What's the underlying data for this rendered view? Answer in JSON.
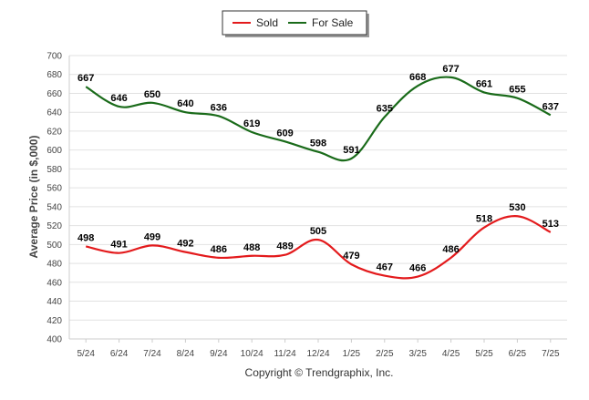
{
  "chart_data": {
    "type": "line",
    "title": "",
    "xlabel": "",
    "ylabel": "Average Price (in $,000)",
    "ylim": [
      400,
      700
    ],
    "ytick_step": 20,
    "grid": true,
    "legend_position": "top-center",
    "categories": [
      "5/24",
      "6/24",
      "7/24",
      "8/24",
      "9/24",
      "10/24",
      "11/24",
      "12/24",
      "1/25",
      "2/25",
      "3/25",
      "4/25",
      "5/25",
      "6/25",
      "7/25"
    ],
    "series": [
      {
        "name": "Sold",
        "color": "#e31a1c",
        "values": [
          498,
          491,
          499,
          492,
          486,
          488,
          489,
          505,
          479,
          467,
          466,
          486,
          518,
          530,
          513
        ]
      },
      {
        "name": "For Sale",
        "color": "#1a6b1a",
        "values": [
          667,
          646,
          650,
          640,
          636,
          619,
          609,
          598,
          591,
          635,
          668,
          677,
          661,
          655,
          637
        ]
      }
    ]
  },
  "copyright": "Copyright © Trendgraphix, Inc."
}
